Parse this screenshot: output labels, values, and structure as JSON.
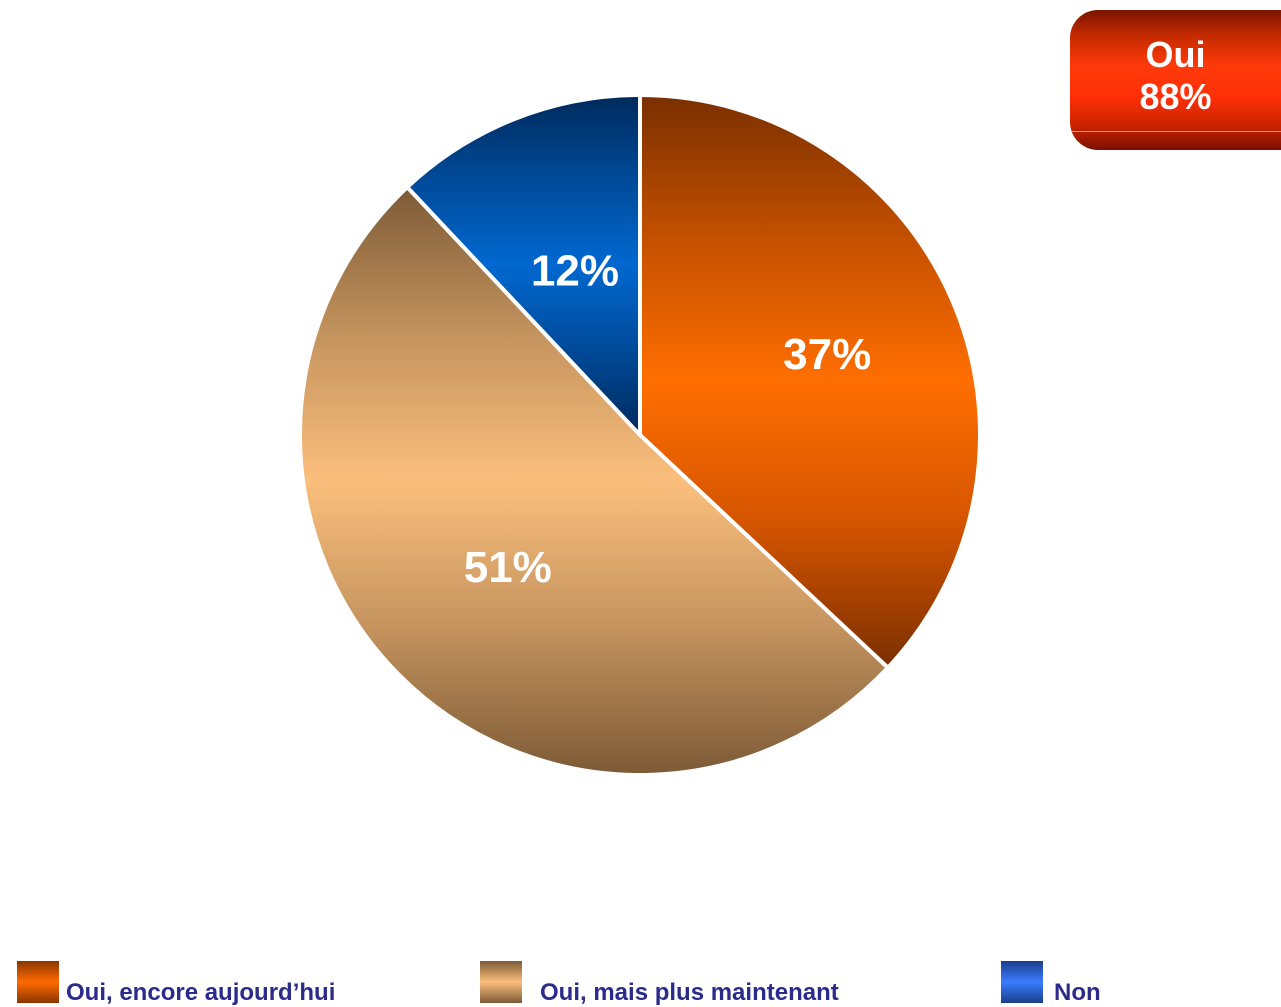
{
  "chart_data": {
    "type": "pie",
    "slices": [
      {
        "label": "Oui, encore aujourd’hui",
        "value": 37,
        "value_label": "37%",
        "color": "#ff6a00"
      },
      {
        "label": "Oui, mais plus maintenant",
        "value": 51,
        "value_label": "51%",
        "color": "#fbbf7c"
      },
      {
        "label": "Non",
        "value": 12,
        "value_label": "12%",
        "color": "#0066cc"
      }
    ],
    "start_angle_deg": 0,
    "direction": "clockwise",
    "legend_position": "bottom",
    "callout": {
      "line1": "Oui",
      "line2": "88%"
    }
  }
}
